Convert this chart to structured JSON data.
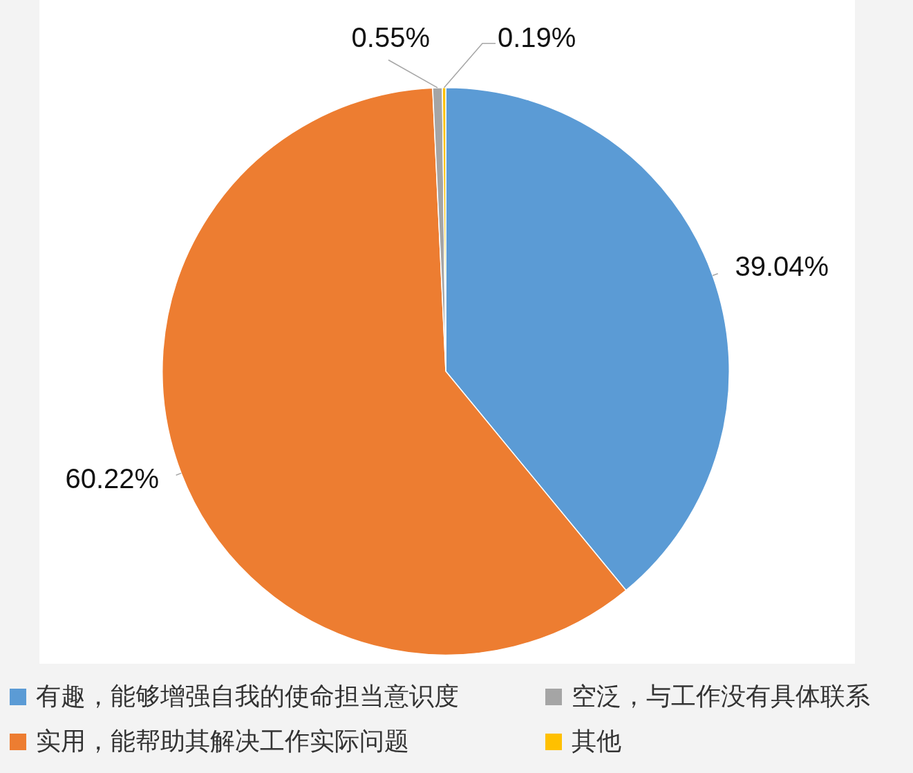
{
  "chart_data": {
    "type": "pie",
    "categories": [
      "有趣，能够增强自我的使命担当意识度",
      "实用，能帮助其解决工作实际问题",
      "空泛，与工作没有具体联系",
      "其他"
    ],
    "values": [
      39.04,
      60.22,
      0.55,
      0.19
    ],
    "value_labels": [
      "39.04%",
      "60.22%",
      "0.55%",
      "0.19%"
    ],
    "colors": [
      "#5b9bd5",
      "#ed7d31",
      "#a5a5a5",
      "#ffc000"
    ],
    "legend": "bottom"
  }
}
